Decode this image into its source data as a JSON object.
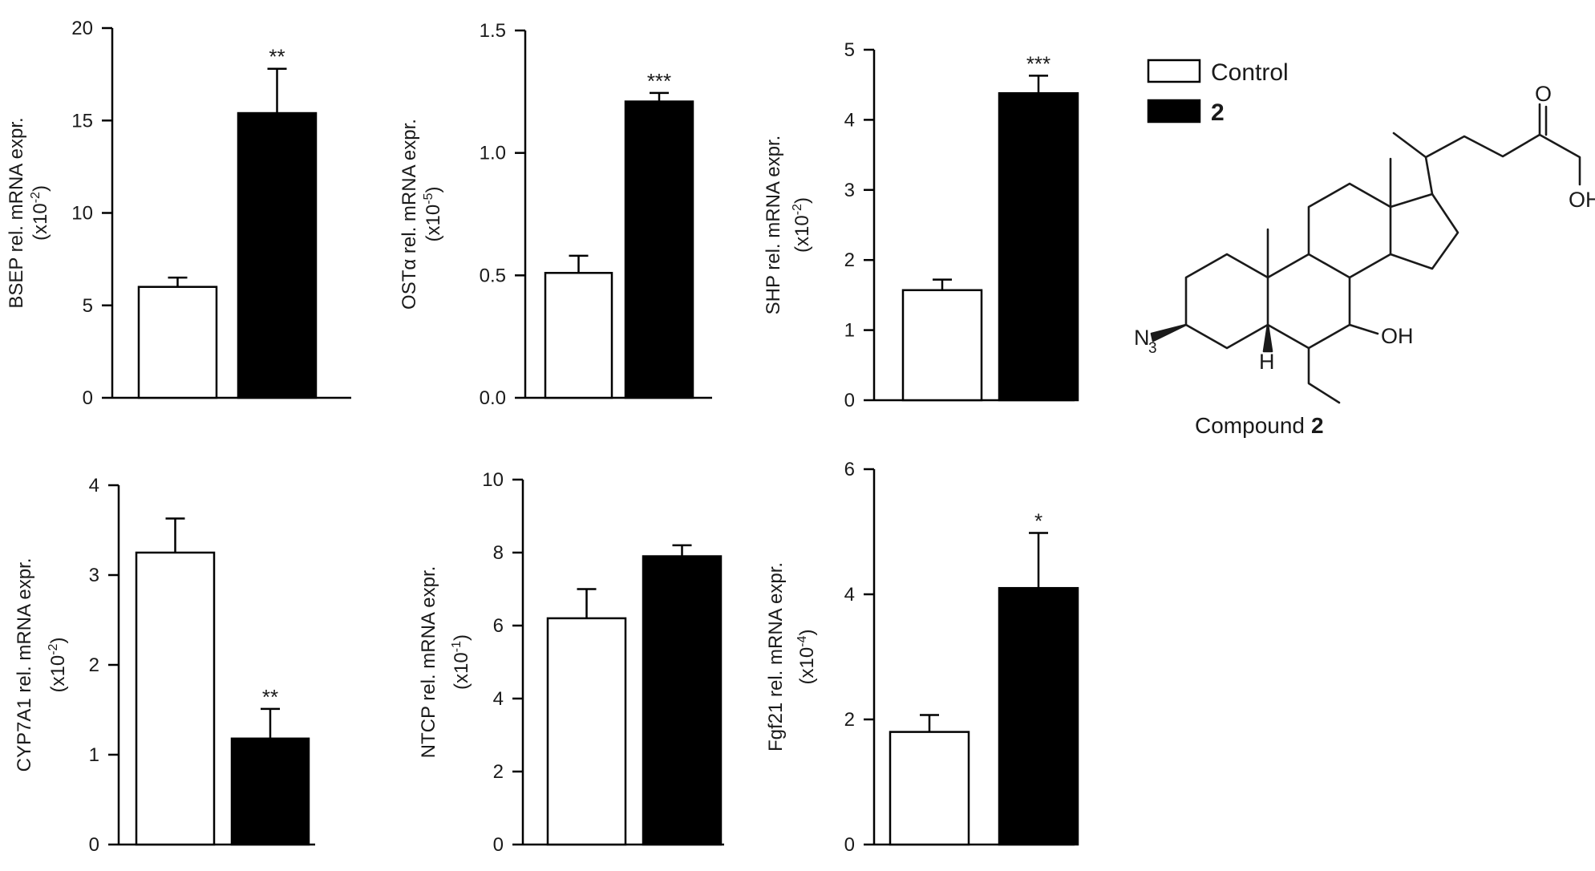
{
  "legend": {
    "items": [
      {
        "label": "Control",
        "fill": "#ffffff"
      },
      {
        "label": "2",
        "fill": "#000000"
      }
    ]
  },
  "structure": {
    "caption_prefix": "Compound",
    "caption_bold": "2",
    "atoms": {
      "oxo": "O",
      "acid_oh": "OH",
      "azide_n": "N",
      "azide_sub": "3",
      "hydroxy": "OH",
      "hydrogen": "H"
    }
  },
  "chart_data": [
    {
      "type": "bar",
      "categories": [
        "Control",
        "2"
      ],
      "values": [
        6.0,
        15.4
      ],
      "errors": [
        0.5,
        2.4
      ],
      "significance": [
        "",
        "**"
      ],
      "ylabel": "BSEP rel. mRNA expr.",
      "ylabel_scale": "(x10",
      "ylabel_exp": "-2",
      "ylim": [
        0,
        20
      ],
      "ticks": [
        "0",
        "5",
        "10",
        "15",
        "20"
      ]
    },
    {
      "type": "bar",
      "categories": [
        "Control",
        "2"
      ],
      "values": [
        0.51,
        1.21
      ],
      "errors": [
        0.07,
        0.035
      ],
      "significance": [
        "",
        "***"
      ],
      "ylabel": "OSTα rel. mRNA expr.",
      "ylabel_scale": "(x10",
      "ylabel_exp": "-5",
      "ylim": [
        0,
        1.5
      ],
      "ticks": [
        "0.0",
        "0.5",
        "1.0",
        "1.5"
      ]
    },
    {
      "type": "bar",
      "categories": [
        "Control",
        "2"
      ],
      "values": [
        1.57,
        4.38
      ],
      "errors": [
        0.15,
        0.25
      ],
      "significance": [
        "",
        "***"
      ],
      "ylabel": "SHP rel. mRNA expr.",
      "ylabel_scale": "(x10",
      "ylabel_exp": "-2",
      "ylim": [
        0,
        5
      ],
      "ticks": [
        "0",
        "1",
        "2",
        "3",
        "4",
        "5"
      ]
    },
    {
      "type": "bar",
      "categories": [
        "Control",
        "2"
      ],
      "values": [
        3.25,
        1.18
      ],
      "errors": [
        0.38,
        0.33
      ],
      "significance": [
        "",
        "**"
      ],
      "ylabel": "CYP7A1 rel. mRNA expr.",
      "ylabel_scale": "(x10",
      "ylabel_exp": "-2",
      "ylim": [
        0,
        4
      ],
      "ticks": [
        "0",
        "1",
        "2",
        "3",
        "4"
      ]
    },
    {
      "type": "bar",
      "categories": [
        "Control",
        "2"
      ],
      "values": [
        6.2,
        7.9
      ],
      "errors": [
        0.8,
        0.3
      ],
      "significance": [
        "",
        ""
      ],
      "ylabel": "NTCP rel. mRNA expr.",
      "ylabel_scale": "(x10",
      "ylabel_exp": "-1",
      "ylim": [
        0,
        10
      ],
      "ticks": [
        "0",
        "2",
        "4",
        "6",
        "8",
        "10"
      ]
    },
    {
      "type": "bar",
      "categories": [
        "Control",
        "2"
      ],
      "values": [
        1.8,
        4.1
      ],
      "errors": [
        0.27,
        0.88
      ],
      "significance": [
        "",
        "*"
      ],
      "ylabel": "Fgf21 rel. mRNA expr.",
      "ylabel_scale": "(x10",
      "ylabel_exp": "-4",
      "ylim": [
        0,
        6
      ],
      "ticks": [
        "0",
        "2",
        "4",
        "6"
      ]
    }
  ]
}
